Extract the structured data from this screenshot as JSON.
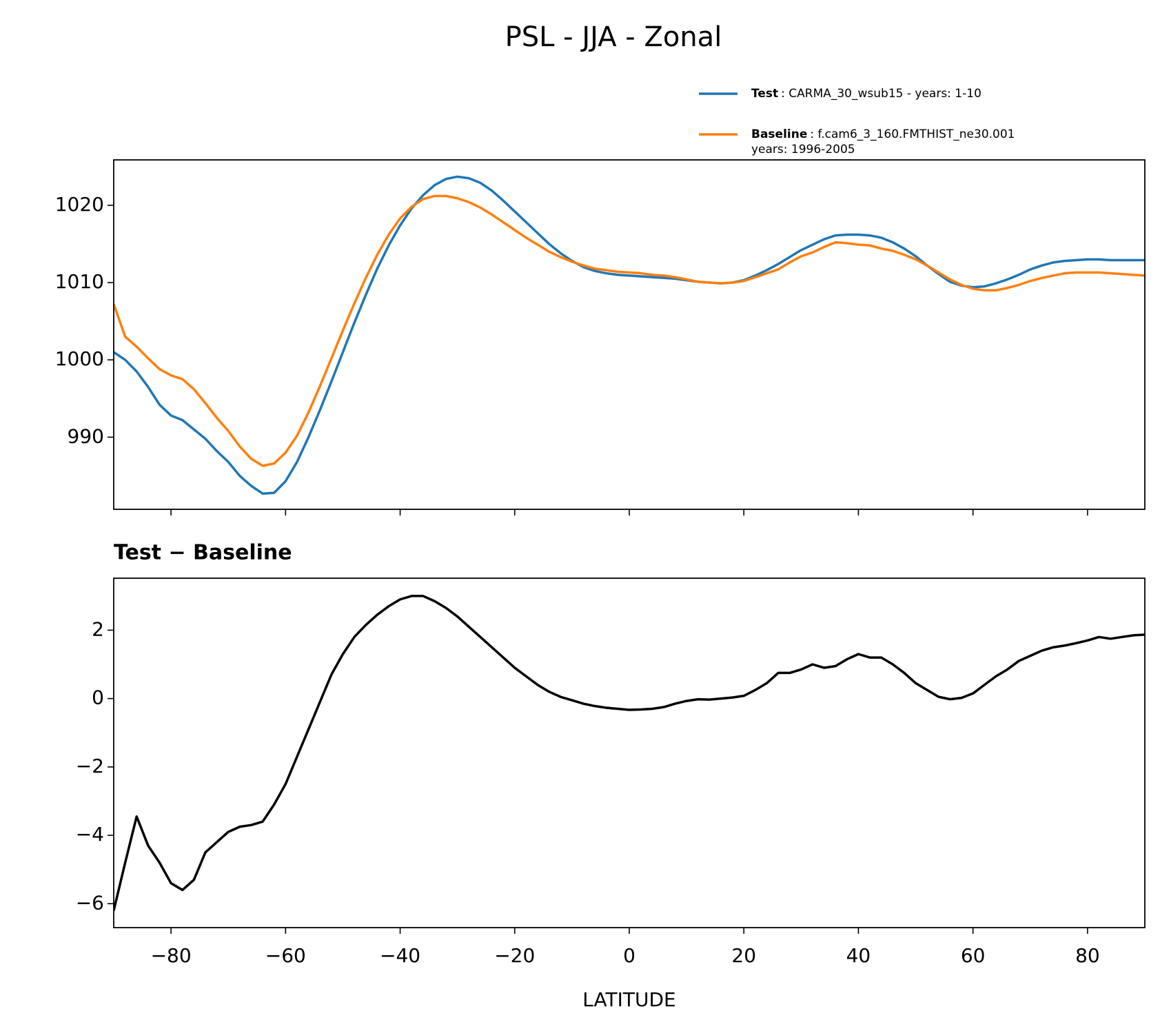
{
  "title": "PSL - JJA - Zonal",
  "chart_data": [
    {
      "type": "line",
      "x": [
        -90,
        -88,
        -86,
        -84,
        -82,
        -80,
        -78,
        -76,
        -74,
        -72,
        -70,
        -68,
        -66,
        -64,
        -62,
        -60,
        -58,
        -56,
        -54,
        -52,
        -50,
        -48,
        -46,
        -44,
        -42,
        -40,
        -38,
        -36,
        -34,
        -32,
        -30,
        -28,
        -26,
        -24,
        -22,
        -20,
        -18,
        -16,
        -14,
        -12,
        -10,
        -8,
        -6,
        -4,
        -2,
        0,
        2,
        4,
        6,
        8,
        10,
        12,
        14,
        16,
        18,
        20,
        22,
        24,
        26,
        28,
        30,
        32,
        34,
        36,
        38,
        40,
        42,
        44,
        46,
        48,
        50,
        52,
        54,
        56,
        58,
        60,
        62,
        64,
        66,
        68,
        70,
        72,
        74,
        76,
        78,
        80,
        82,
        84,
        86,
        88,
        90
      ],
      "series": [
        {
          "name": "Test",
          "description": [
            ": CARMA_30_wsub15 - years: 1-10"
          ],
          "color": "#1f77b4",
          "values": [
            1001,
            1000,
            998.5,
            996.5,
            994.2,
            992.8,
            992.2,
            991,
            989.8,
            988.2,
            986.8,
            985,
            983.7,
            982.7,
            982.8,
            984.3,
            986.8,
            990,
            993.5,
            997.2,
            1001,
            1004.8,
            1008.4,
            1011.8,
            1014.8,
            1017.4,
            1019.6,
            1021.3,
            1022.6,
            1023.4,
            1023.7,
            1023.5,
            1022.9,
            1021.9,
            1020.6,
            1019.2,
            1017.8,
            1016.4,
            1015,
            1013.8,
            1012.8,
            1012,
            1011.5,
            1011.2,
            1011,
            1010.9,
            1010.8,
            1010.7,
            1010.6,
            1010.5,
            1010.3,
            1010.1,
            1010,
            1009.9,
            1010,
            1010.3,
            1010.9,
            1011.6,
            1012.4,
            1013.3,
            1014.2,
            1014.9,
            1015.6,
            1016.1,
            1016.2,
            1016.2,
            1016.1,
            1015.8,
            1015.2,
            1014.4,
            1013.4,
            1012.2,
            1011.1,
            1010.1,
            1009.6,
            1009.4,
            1009.5,
            1009.9,
            1010.4,
            1011,
            1011.7,
            1012.2,
            1012.6,
            1012.8,
            1012.9,
            1013,
            1013,
            1012.9,
            1012.9,
            1012.9,
            1012.9
          ]
        },
        {
          "name": "Baseline",
          "description": [
            ": f.cam6_3_160.FMTHIST_ne30.001",
            "years: 1996-2005"
          ],
          "color": "#ff7f0e",
          "values": [
            1007.2,
            1003,
            1001.7,
            1000.2,
            998.8,
            998,
            997.5,
            996.2,
            994.4,
            992.5,
            990.8,
            988.8,
            987.2,
            986.3,
            986.6,
            988,
            990.2,
            993.2,
            996.6,
            1000.2,
            1003.8,
            1007.3,
            1010.6,
            1013.6,
            1016.2,
            1018.3,
            1019.8,
            1020.8,
            1021.2,
            1021.2,
            1020.9,
            1020.4,
            1019.7,
            1018.8,
            1017.8,
            1016.8,
            1015.8,
            1014.9,
            1014,
            1013.3,
            1012.7,
            1012.2,
            1011.8,
            1011.6,
            1011.4,
            1011.3,
            1011.2,
            1011,
            1010.9,
            1010.7,
            1010.4,
            1010.1,
            1010,
            1009.9,
            1010,
            1010.2,
            1010.7,
            1011.2,
            1011.7,
            1012.6,
            1013.4,
            1013.9,
            1014.6,
            1015.2,
            1015.1,
            1014.9,
            1014.8,
            1014.4,
            1014.1,
            1013.6,
            1013,
            1012.2,
            1011.3,
            1010.4,
            1009.7,
            1009.2,
            1009,
            1009,
            1009.3,
            1009.7,
            1010.2,
            1010.6,
            1010.9,
            1011.2,
            1011.3,
            1011.3,
            1011.3,
            1011.2,
            1011.1,
            1011,
            1010.9
          ]
        }
      ],
      "xlim": [
        -90,
        90
      ],
      "xticks": [
        -80,
        -60,
        -40,
        -20,
        0,
        20,
        40,
        60,
        80
      ],
      "ylim": [
        980.67,
        1025.87
      ],
      "yticks": [
        990,
        1000,
        1010,
        1020
      ],
      "legend": "upper right"
    },
    {
      "type": "line",
      "title": "Test − Baseline",
      "xlabel": "LATITUDE",
      "x": [
        -90,
        -88,
        -86,
        -84,
        -82,
        -80,
        -78,
        -76,
        -74,
        -72,
        -70,
        -68,
        -66,
        -64,
        -62,
        -60,
        -58,
        -56,
        -54,
        -52,
        -50,
        -48,
        -46,
        -44,
        -42,
        -40,
        -38,
        -36,
        -34,
        -32,
        -30,
        -28,
        -26,
        -24,
        -22,
        -20,
        -18,
        -16,
        -14,
        -12,
        -10,
        -8,
        -6,
        -4,
        -2,
        0,
        2,
        4,
        6,
        8,
        10,
        12,
        14,
        16,
        18,
        20,
        22,
        24,
        26,
        28,
        30,
        32,
        34,
        36,
        38,
        40,
        42,
        44,
        46,
        48,
        50,
        52,
        54,
        56,
        58,
        60,
        62,
        64,
        66,
        68,
        70,
        72,
        74,
        76,
        78,
        80,
        82,
        84,
        86,
        88,
        90
      ],
      "series": [
        {
          "color": "#000000",
          "values": [
            -6.2,
            -4.8,
            -3.45,
            -4.3,
            -4.8,
            -5.4,
            -5.6,
            -5.3,
            -4.5,
            -4.2,
            -3.9,
            -3.75,
            -3.7,
            -3.6,
            -3.1,
            -2.5,
            -1.7,
            -0.9,
            -0.1,
            0.7,
            1.3,
            1.8,
            2.15,
            2.45,
            2.7,
            2.9,
            3.0,
            3.0,
            2.85,
            2.65,
            2.4,
            2.1,
            1.8,
            1.5,
            1.2,
            0.9,
            0.65,
            0.4,
            0.2,
            0.05,
            -0.05,
            -0.15,
            -0.22,
            -0.27,
            -0.3,
            -0.33,
            -0.32,
            -0.3,
            -0.25,
            -0.15,
            -0.07,
            -0.02,
            -0.03,
            0,
            0.03,
            0.08,
            0.25,
            0.45,
            0.75,
            0.75,
            0.85,
            1.0,
            0.9,
            0.95,
            1.15,
            1.3,
            1.2,
            1.2,
            1.0,
            0.75,
            0.45,
            0.25,
            0.05,
            -0.02,
            0.02,
            0.15,
            0.4,
            0.65,
            0.85,
            1.1,
            1.25,
            1.4,
            1.5,
            1.55,
            1.62,
            1.7,
            1.8,
            1.75,
            1.8,
            1.85,
            1.87
          ]
        }
      ],
      "xlim": [
        -90,
        90
      ],
      "xticks": [
        {
          "value": -80,
          "label": "−80"
        },
        {
          "value": -60,
          "label": "−60"
        },
        {
          "value": -40,
          "label": "−40"
        },
        {
          "value": -20,
          "label": "−20"
        },
        0,
        20,
        40,
        60,
        80
      ],
      "ylim": [
        -6.7,
        3.52
      ],
      "yticks": [
        {
          "value": -6,
          "label": "−6"
        },
        {
          "value": -4,
          "label": "−4"
        },
        {
          "value": -2,
          "label": "−2"
        },
        0,
        2
      ]
    }
  ]
}
